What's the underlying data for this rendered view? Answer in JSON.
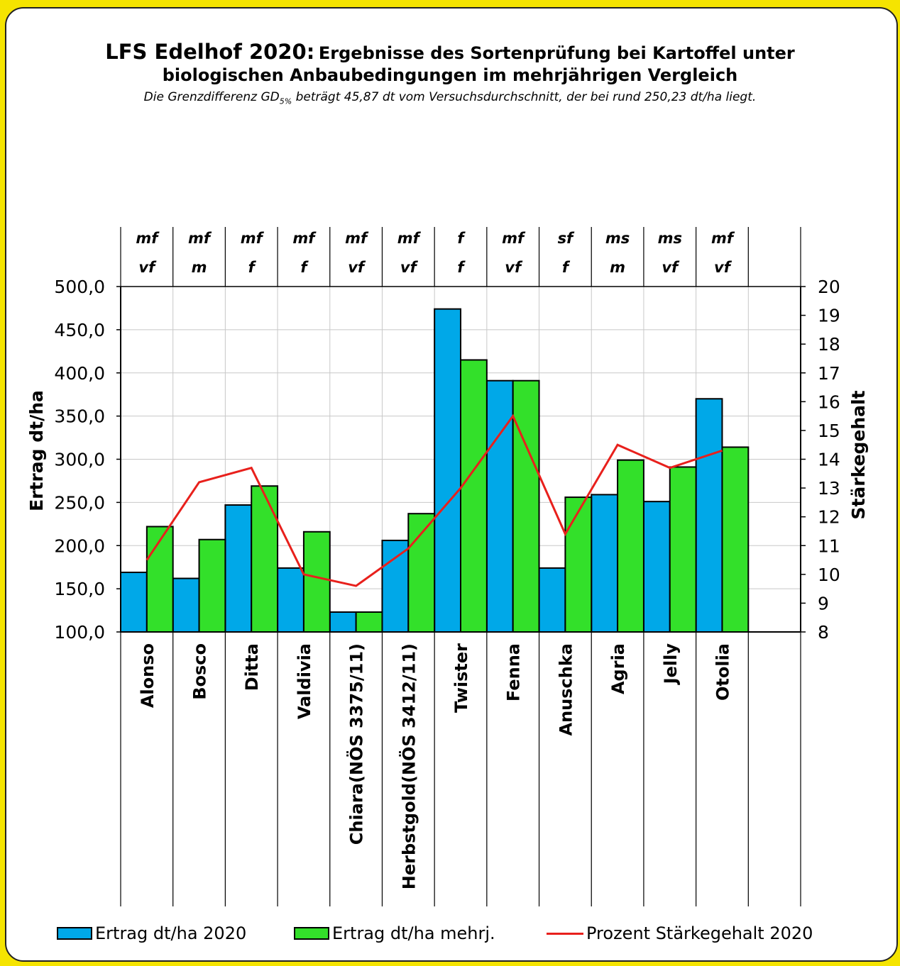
{
  "chart_data": {
    "type": "bar",
    "title_main": "LFS Edelhof 2020:",
    "title_rest": "Ergebnisse des Sortenprüfung bei Kartoffel unter",
    "title_line2": "biologischen Anbaubedingungen im mehrjährigen Vergleich",
    "subtitle_pre": "Die Grenzdifferenz GD",
    "subtitle_sub": "5%",
    "subtitle_post": " beträgt 45,87 dt vom Versuchsdurchschnitt, der bei rund 250,23  dt/ha liegt.",
    "ylabel": "Ertrag dt/ha",
    "y2label": "Stärkegehalt",
    "ylim": [
      100,
      500
    ],
    "y_ticks": [
      "100,0",
      "150,0",
      "200,0",
      "250,0",
      "300,0",
      "350,0",
      "400,0",
      "450,0",
      "500,0"
    ],
    "y2lim": [
      8,
      20
    ],
    "y2_ticks": [
      "8",
      "9",
      "10",
      "11",
      "12",
      "13",
      "14",
      "15",
      "16",
      "17",
      "18",
      "19",
      "20"
    ],
    "categories": [
      "Alonso",
      "Bosco",
      "Ditta",
      "Valdivia",
      "Chiara(NÖS 3375/11)",
      "Herbstgold(NÖS 3412/11)",
      "Twister",
      "Fenna",
      "Anuschka",
      "Agria",
      "Jelly",
      "Otolia"
    ],
    "header_row1": [
      "mf",
      "mf",
      "mf",
      "mf",
      "mf",
      "mf",
      "f",
      "mf",
      "sf",
      "ms",
      "ms",
      "mf"
    ],
    "header_row2": [
      "vf",
      "m",
      "f",
      "f",
      "vf",
      "vf",
      "f",
      "vf",
      "f",
      "m",
      "vf",
      "vf"
    ],
    "series": [
      {
        "name": "Ertrag dt/ha 2020",
        "kind": "bar",
        "color": "#00a8e8",
        "values": [
          169,
          162,
          247,
          174,
          123,
          206,
          474,
          391,
          174,
          259,
          251,
          370
        ]
      },
      {
        "name": "Ertrag dt/ha mehrj.",
        "kind": "bar",
        "color": "#33e02a",
        "values": [
          222,
          207,
          269,
          216,
          123,
          237,
          415,
          391,
          256,
          299,
          291,
          314
        ]
      },
      {
        "name": "Prozent Stärkegehalt 2020",
        "kind": "line",
        "axis": "right",
        "color": "#e8201c",
        "values": [
          10.5,
          13.2,
          13.7,
          10.0,
          9.6,
          10.9,
          13.0,
          15.5,
          11.4,
          14.5,
          13.7,
          14.3
        ]
      }
    ],
    "legend_position": "bottom",
    "grid": true
  }
}
